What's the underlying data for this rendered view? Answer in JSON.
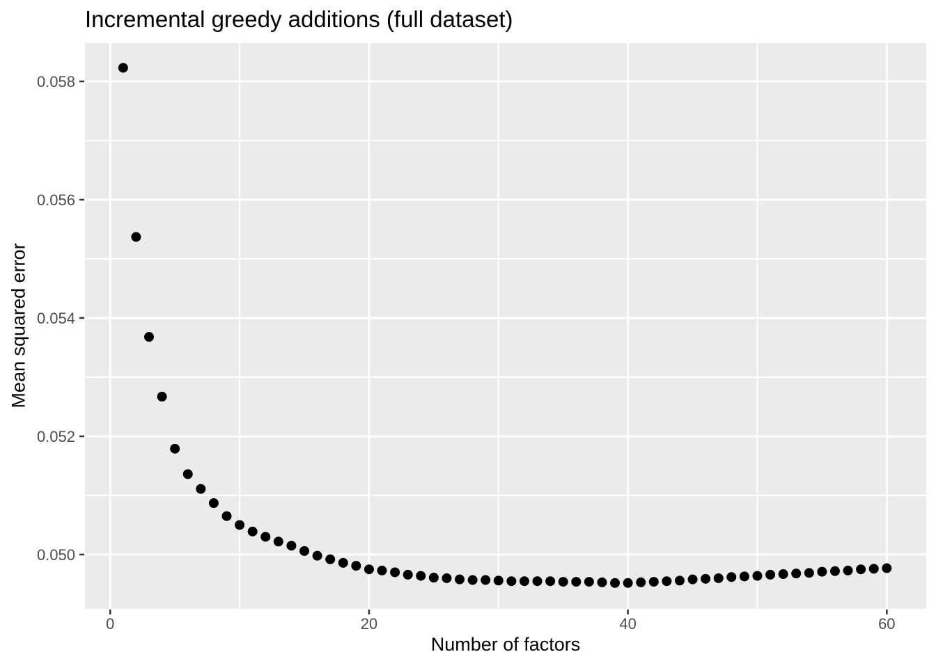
{
  "chart_data": {
    "type": "scatter",
    "title": "Incremental greedy additions (full dataset)",
    "xlabel": "Number of factors",
    "ylabel": "Mean squared error",
    "x_ticks": [
      0,
      20,
      40,
      60
    ],
    "x_tick_labels": [
      "0",
      "20",
      "40",
      "60"
    ],
    "x_minor_ticks": [
      10,
      30,
      50
    ],
    "y_ticks": [
      0.05,
      0.052,
      0.054,
      0.056,
      0.058
    ],
    "y_tick_labels": [
      "0.050",
      "0.052",
      "0.054",
      "0.056",
      "0.058"
    ],
    "y_minor_ticks": [
      0.051,
      0.053,
      0.055,
      0.057
    ],
    "xlim": [
      -1.95,
      63.05
    ],
    "ylim": [
      0.049082,
      0.058647
    ],
    "grid": true,
    "legend": false,
    "x": [
      1,
      2,
      3,
      4,
      5,
      6,
      7,
      8,
      9,
      10,
      11,
      12,
      13,
      14,
      15,
      16,
      17,
      18,
      19,
      20,
      21,
      22,
      23,
      24,
      25,
      26,
      27,
      28,
      29,
      30,
      31,
      32,
      33,
      34,
      35,
      36,
      37,
      38,
      39,
      40,
      41,
      42,
      43,
      44,
      45,
      46,
      47,
      48,
      49,
      50,
      51,
      52,
      53,
      54,
      55,
      56,
      57,
      58,
      59,
      60
    ],
    "y": [
      0.05823,
      0.05537,
      0.05368,
      0.05267,
      0.05179,
      0.05136,
      0.05111,
      0.05087,
      0.05065,
      0.0505,
      0.05039,
      0.0503,
      0.05022,
      0.05015,
      0.05006,
      0.04998,
      0.04992,
      0.04986,
      0.04981,
      0.04975,
      0.04973,
      0.0497,
      0.04966,
      0.04964,
      0.04961,
      0.0496,
      0.04958,
      0.04957,
      0.04957,
      0.04956,
      0.04955,
      0.04955,
      0.04955,
      0.04955,
      0.04954,
      0.04954,
      0.04954,
      0.04953,
      0.04952,
      0.04952,
      0.04953,
      0.04954,
      0.04955,
      0.04956,
      0.04958,
      0.04959,
      0.0496,
      0.04962,
      0.04963,
      0.04964,
      0.04966,
      0.04967,
      0.04968,
      0.04969,
      0.04971,
      0.04972,
      0.04973,
      0.04975,
      0.04976,
      0.04977
    ],
    "colors": {
      "panel_background": "#EBEBEB",
      "grid": "#FFFFFF",
      "point": "#000000",
      "tick_label": "#4D4D4D",
      "tick_mark": "#333333",
      "title": "#000000"
    }
  }
}
